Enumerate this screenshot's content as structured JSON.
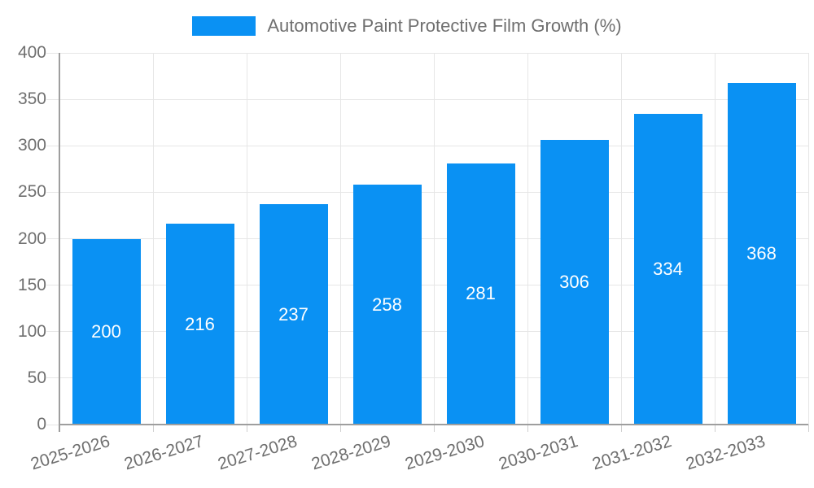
{
  "chart_data": {
    "type": "bar",
    "title": "Automotive Paint Protective Film Growth (%)",
    "categories": [
      "2025-2026",
      "2026-2027",
      "2027-2028",
      "2028-2029",
      "2029-2030",
      "2030-2031",
      "2031-2032",
      "2032-2033"
    ],
    "values": [
      200,
      216,
      237,
      258,
      281,
      306,
      334,
      368
    ],
    "xlabel": "",
    "ylabel": "",
    "ylim": [
      0,
      400
    ],
    "yticks": [
      0,
      50,
      100,
      150,
      200,
      250,
      300,
      350,
      400
    ],
    "grid": true,
    "legend_position": "top-center",
    "value_label_position": "inside-center",
    "colors": {
      "bar": "#0A91F3",
      "value_label": "#FFFFFF",
      "axis": "#9E9E9E",
      "gridline": "#E6E6E6",
      "text": "#6F6F6F",
      "background": "#FFFFFF"
    }
  }
}
